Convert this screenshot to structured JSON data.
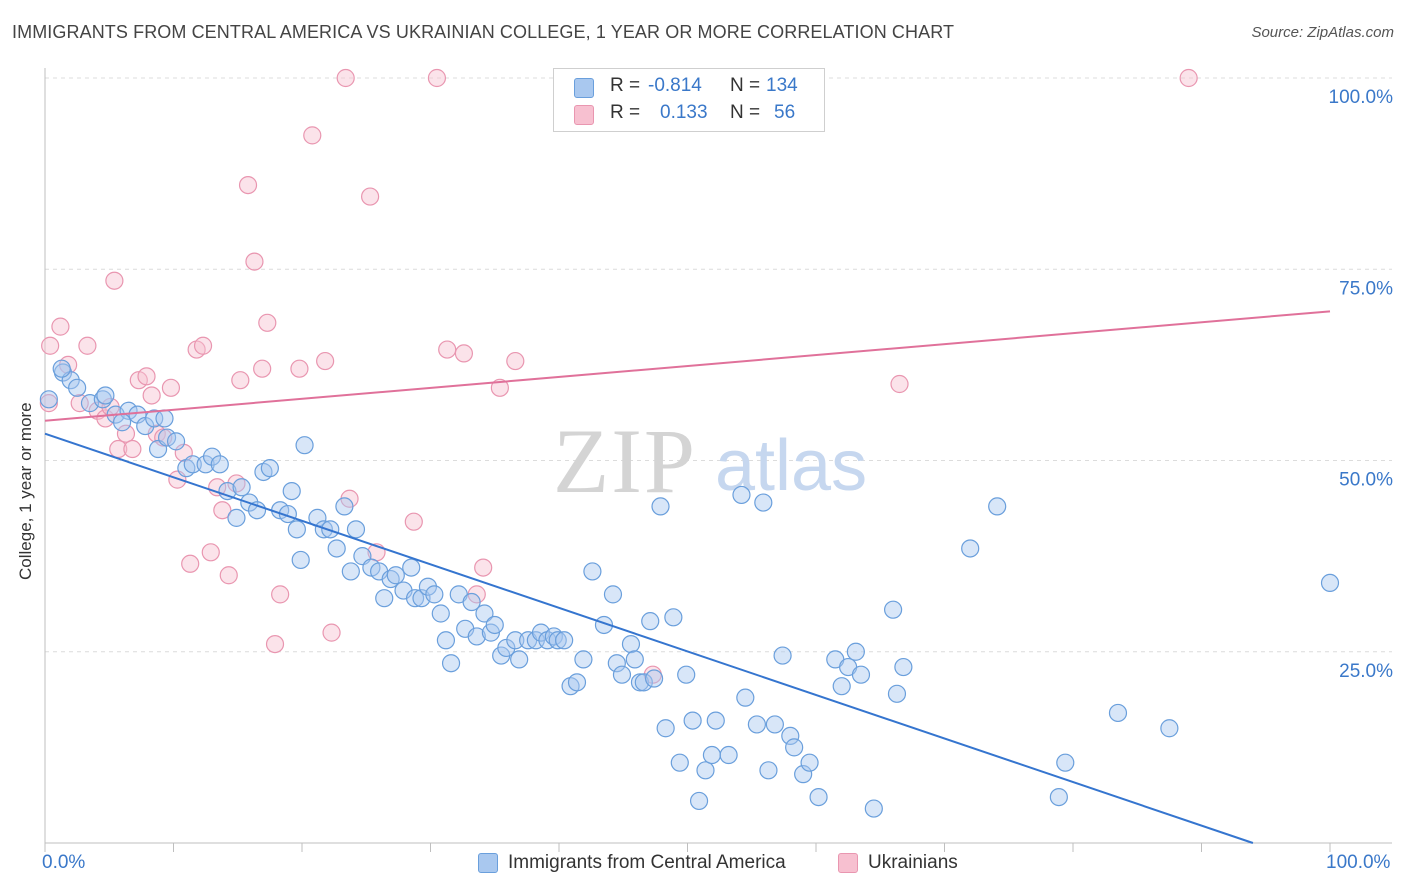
{
  "title": "IMMIGRANTS FROM CENTRAL AMERICA VS UKRAINIAN COLLEGE, 1 YEAR OR MORE CORRELATION CHART",
  "source": "Source: ZipAtlas.com",
  "watermark": {
    "zip": "ZIP",
    "atlas": "atlas"
  },
  "legend": {
    "r_label": "R =",
    "n_label": "N =",
    "blue": {
      "r": "-0.814",
      "n": "134"
    },
    "pink": {
      "r": "0.133",
      "n": "56"
    }
  },
  "colors": {
    "blue_fill": "#a9c8ef",
    "blue_stroke": "#6a9fdc",
    "blue_line": "#3575cf",
    "pink_fill": "#f7c0d0",
    "pink_stroke": "#e996b0",
    "pink_line": "#e0719a",
    "axis_text": "#3a78c9"
  },
  "chart_data": {
    "type": "scatter",
    "title": "IMMIGRANTS FROM CENTRAL AMERICA VS UKRAINIAN COLLEGE, 1 YEAR OR MORE CORRELATION CHART",
    "xlabel": "",
    "ylabel": "College, 1 year or more",
    "xlim": [
      0,
      100
    ],
    "ylim": [
      0,
      100
    ],
    "x_tick_labels": [
      "0.0%",
      "100.0%"
    ],
    "y_ticks": [
      {
        "value": 25,
        "label": "25.0%"
      },
      {
        "value": 50,
        "label": "50.0%"
      },
      {
        "value": 75,
        "label": "75.0%"
      },
      {
        "value": 100,
        "label": "100.0%"
      }
    ],
    "grid": true,
    "series": [
      {
        "name": "Immigrants from Central America",
        "color": "blue",
        "trend": {
          "x0": 0,
          "y0": 53.5,
          "x1": 94,
          "y1": 0
        },
        "points": [
          [
            0.3,
            58
          ],
          [
            1.4,
            61.5
          ],
          [
            2,
            60.5
          ],
          [
            1.3,
            62
          ],
          [
            2.5,
            59.5
          ],
          [
            3.5,
            57.5
          ],
          [
            4.5,
            58
          ],
          [
            4.7,
            58.5
          ],
          [
            5.5,
            56
          ],
          [
            6.5,
            56.5
          ],
          [
            6,
            55
          ],
          [
            7.2,
            56
          ],
          [
            7.8,
            54.5
          ],
          [
            8.5,
            55.5
          ],
          [
            9.3,
            55.5
          ],
          [
            8.8,
            51.5
          ],
          [
            9.5,
            53
          ],
          [
            10.2,
            52.5
          ],
          [
            11,
            49
          ],
          [
            11.5,
            49.5
          ],
          [
            12.5,
            49.5
          ],
          [
            13,
            50.5
          ],
          [
            13.6,
            49.5
          ],
          [
            14.2,
            46
          ],
          [
            14.9,
            42.5
          ],
          [
            15.3,
            46.5
          ],
          [
            15.9,
            44.5
          ],
          [
            16.5,
            43.5
          ],
          [
            17,
            48.5
          ],
          [
            17.5,
            49
          ],
          [
            18.3,
            43.5
          ],
          [
            18.9,
            43
          ],
          [
            19.2,
            46
          ],
          [
            19.6,
            41
          ],
          [
            19.9,
            37
          ],
          [
            20.2,
            52
          ],
          [
            21.2,
            42.5
          ],
          [
            21.7,
            41
          ],
          [
            22.2,
            41
          ],
          [
            22.7,
            38.5
          ],
          [
            23.3,
            44
          ],
          [
            23.8,
            35.5
          ],
          [
            24.2,
            41
          ],
          [
            24.7,
            37.5
          ],
          [
            25.4,
            36
          ],
          [
            26,
            35.5
          ],
          [
            26.4,
            32
          ],
          [
            26.9,
            34.5
          ],
          [
            27.3,
            35
          ],
          [
            27.9,
            33
          ],
          [
            28.5,
            36
          ],
          [
            28.8,
            32
          ],
          [
            29.3,
            32
          ],
          [
            29.8,
            33.5
          ],
          [
            30.3,
            32.5
          ],
          [
            30.8,
            30
          ],
          [
            31.2,
            26.5
          ],
          [
            31.6,
            23.5
          ],
          [
            32.2,
            32.5
          ],
          [
            32.7,
            28
          ],
          [
            33.2,
            31.5
          ],
          [
            33.6,
            27
          ],
          [
            34.2,
            30
          ],
          [
            34.7,
            27.5
          ],
          [
            35,
            28.5
          ],
          [
            35.5,
            24.5
          ],
          [
            35.9,
            25.5
          ],
          [
            36.6,
            26.5
          ],
          [
            36.9,
            24
          ],
          [
            37.6,
            26.5
          ],
          [
            38.2,
            26.5
          ],
          [
            38.6,
            27.5
          ],
          [
            39.1,
            26.5
          ],
          [
            39.6,
            27
          ],
          [
            39.9,
            26.5
          ],
          [
            40.4,
            26.5
          ],
          [
            40.9,
            20.5
          ],
          [
            41.4,
            21
          ],
          [
            41.9,
            24
          ],
          [
            42.6,
            35.5
          ],
          [
            43.5,
            28.5
          ],
          [
            44.2,
            32.5
          ],
          [
            44.5,
            23.5
          ],
          [
            44.9,
            22
          ],
          [
            45.6,
            26
          ],
          [
            45.9,
            24
          ],
          [
            46.3,
            21
          ],
          [
            46.6,
            21
          ],
          [
            47.1,
            29
          ],
          [
            47.4,
            21.5
          ],
          [
            47.9,
            44
          ],
          [
            48.3,
            15
          ],
          [
            48.9,
            29.5
          ],
          [
            49.4,
            10.5
          ],
          [
            49.9,
            22
          ],
          [
            50.4,
            16
          ],
          [
            50.9,
            5.5
          ],
          [
            51.4,
            9.5
          ],
          [
            51.9,
            11.5
          ],
          [
            52.2,
            16
          ],
          [
            53.2,
            11.5
          ],
          [
            54.2,
            45.5
          ],
          [
            54.5,
            19
          ],
          [
            55.4,
            15.5
          ],
          [
            55.9,
            44.5
          ],
          [
            56.3,
            9.5
          ],
          [
            56.8,
            15.5
          ],
          [
            57.4,
            24.5
          ],
          [
            58,
            14
          ],
          [
            58.3,
            12.5
          ],
          [
            59,
            9
          ],
          [
            59.5,
            10.5
          ],
          [
            60.2,
            6
          ],
          [
            61.5,
            24
          ],
          [
            62,
            20.5
          ],
          [
            62.5,
            23
          ],
          [
            63.1,
            25
          ],
          [
            63.5,
            22
          ],
          [
            64.5,
            4.5
          ],
          [
            66,
            30.5
          ],
          [
            66.3,
            19.5
          ],
          [
            66.8,
            23
          ],
          [
            72,
            38.5
          ],
          [
            74.1,
            44
          ],
          [
            78.9,
            6
          ],
          [
            79.4,
            10.5
          ],
          [
            83.5,
            17
          ],
          [
            87.5,
            15
          ],
          [
            100,
            34
          ]
        ]
      },
      {
        "name": "Ukrainians",
        "color": "pink",
        "trend": {
          "x0": 0,
          "y0": 55.2,
          "x1": 100,
          "y1": 69.5
        },
        "points": [
          [
            0.4,
            65
          ],
          [
            0.3,
            57.5
          ],
          [
            1.2,
            67.5
          ],
          [
            1.8,
            62.5
          ],
          [
            2.7,
            57.5
          ],
          [
            3.3,
            65
          ],
          [
            4.1,
            56.5
          ],
          [
            4.7,
            55.5
          ],
          [
            5.1,
            57
          ],
          [
            5.4,
            73.5
          ],
          [
            5.7,
            51.5
          ],
          [
            6.3,
            53.5
          ],
          [
            6.8,
            51.5
          ],
          [
            7.3,
            60.5
          ],
          [
            7.9,
            61
          ],
          [
            8.3,
            58.5
          ],
          [
            8.7,
            53.5
          ],
          [
            9.2,
            53
          ],
          [
            9.8,
            59.5
          ],
          [
            10.3,
            47.5
          ],
          [
            10.8,
            51
          ],
          [
            11.3,
            36.5
          ],
          [
            11.8,
            64.5
          ],
          [
            12.3,
            65
          ],
          [
            12.9,
            38
          ],
          [
            13.4,
            46.5
          ],
          [
            13.8,
            43.5
          ],
          [
            14.3,
            35
          ],
          [
            14.9,
            47
          ],
          [
            15.2,
            60.5
          ],
          [
            15.8,
            86
          ],
          [
            16.3,
            76
          ],
          [
            16.9,
            62
          ],
          [
            17.3,
            68
          ],
          [
            17.9,
            26
          ],
          [
            18.3,
            32.5
          ],
          [
            19.8,
            62
          ],
          [
            20.8,
            92.5
          ],
          [
            21.8,
            63
          ],
          [
            22.3,
            27.5
          ],
          [
            23.4,
            100
          ],
          [
            23.7,
            45
          ],
          [
            25.3,
            84.5
          ],
          [
            25.8,
            38
          ],
          [
            28.7,
            42
          ],
          [
            30.5,
            100
          ],
          [
            31.3,
            64.5
          ],
          [
            32.6,
            64
          ],
          [
            33.6,
            32.5
          ],
          [
            34.1,
            36
          ],
          [
            35.4,
            59.5
          ],
          [
            36.6,
            63
          ],
          [
            47.3,
            22
          ],
          [
            66.5,
            60
          ],
          [
            89,
            100
          ]
        ]
      }
    ]
  },
  "bottom_legend": {
    "blue_label": "Immigrants from Central America",
    "pink_label": "Ukrainians"
  }
}
